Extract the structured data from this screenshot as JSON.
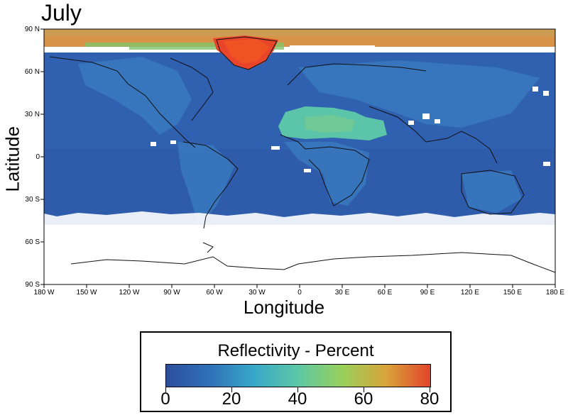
{
  "title": "July",
  "xlabel": "Longitude",
  "ylabel": "Latitude",
  "lat_ticks": [
    "90 N",
    "60 N",
    "30 N",
    "0",
    "30 S",
    "60 S",
    "90 S"
  ],
  "lon_ticks": [
    "180 W",
    "150 W",
    "120 W",
    "90 W",
    "60 W",
    "30 W",
    "0",
    "30 E",
    "60 E",
    "90 E",
    "120 E",
    "150 E",
    "180 E"
  ],
  "colorbar": {
    "title": "Reflectivity - Percent",
    "min": 0,
    "max": 80,
    "ticks": [
      "0",
      "20",
      "40",
      "60",
      "80"
    ],
    "colors": [
      "#2c4f9d",
      "#2f72b9",
      "#38a8c8",
      "#5cc7a5",
      "#98d05a",
      "#d9a33a",
      "#e2452b"
    ]
  },
  "regions": {
    "ocean_background_color": "#3060b0",
    "no_data_color": "#ffffff",
    "greenland_color": "#e8452a",
    "sahara_color": "#5cc4a8",
    "arctic_band_color": "#d79448"
  }
}
